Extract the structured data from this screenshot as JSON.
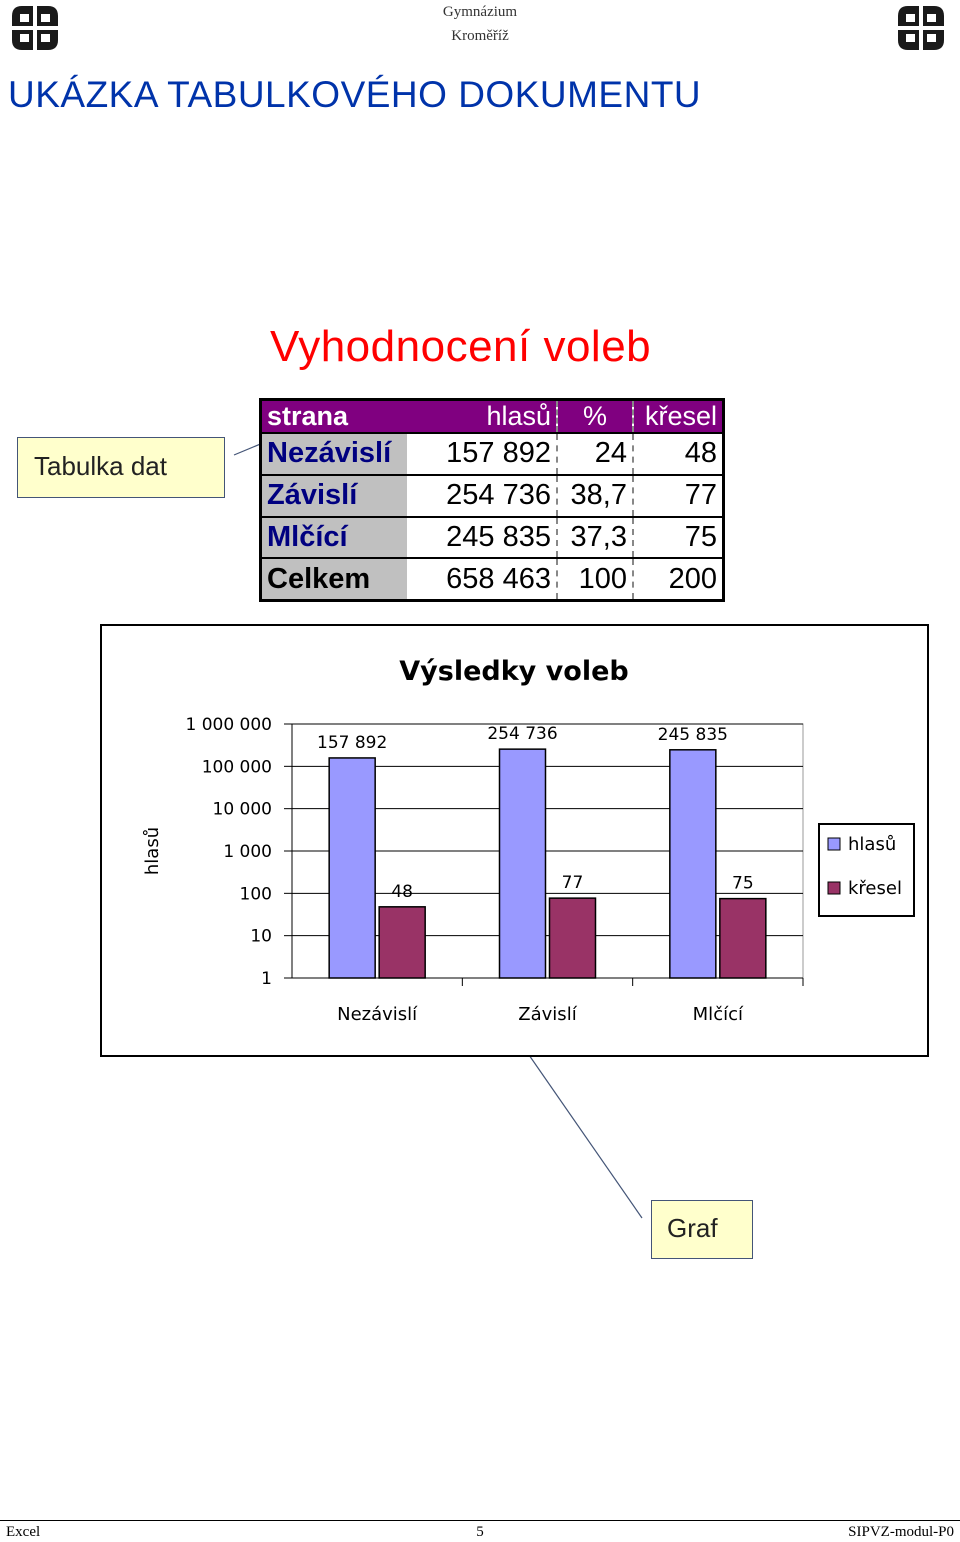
{
  "header": {
    "school_line1": "Gymnázium",
    "school_line2": "Kroměříž"
  },
  "page_title": "UKÁZKA TABULKOVÉHO DOKUMENTU",
  "callouts": {
    "table": "Tabulka dat",
    "chart": "Graf"
  },
  "spreadsheet": {
    "title": "Vyhodnocení voleb",
    "columns": [
      "strana",
      "hlasů",
      "%",
      "křesel"
    ],
    "rows": [
      [
        "Nezávislí",
        "157 892",
        "24",
        "48"
      ],
      [
        "Závislí",
        "254 736",
        "38,7",
        "77"
      ],
      [
        "Mlčící",
        "245 835",
        "37,3",
        "75"
      ],
      [
        "Celkem",
        "658 463",
        "100",
        "200"
      ]
    ]
  },
  "chart_data": {
    "type": "bar",
    "title": "Výsledky voleb",
    "ylabel": "hlasů",
    "xlabel": "",
    "yscale": "log",
    "ylim": [
      1,
      1000000
    ],
    "ytick_labels": [
      "1",
      "10",
      "100",
      "1 000",
      "10 000",
      "100 000",
      "1 000 000"
    ],
    "categories": [
      "Nezávislí",
      "Závislí",
      "Mlčící"
    ],
    "series": [
      {
        "name": "hlasů",
        "values": [
          157892,
          254736,
          245835
        ],
        "labels": [
          "157 892",
          "254 736",
          "245 835"
        ],
        "color": "#9999ff"
      },
      {
        "name": "křesel",
        "values": [
          48,
          77,
          75
        ],
        "labels": [
          "48",
          "77",
          "75"
        ],
        "color": "#993366"
      }
    ],
    "legend": "right",
    "grid": true
  },
  "footer": {
    "left": "Excel",
    "center": "5",
    "right": "SIPVZ-modul-P0"
  },
  "colors": {
    "title_blue": "#0033aa",
    "spreadsheet_header": "#800080",
    "spreadsheet_title": "#ff0000",
    "callout_fill": "#ffffcc"
  }
}
